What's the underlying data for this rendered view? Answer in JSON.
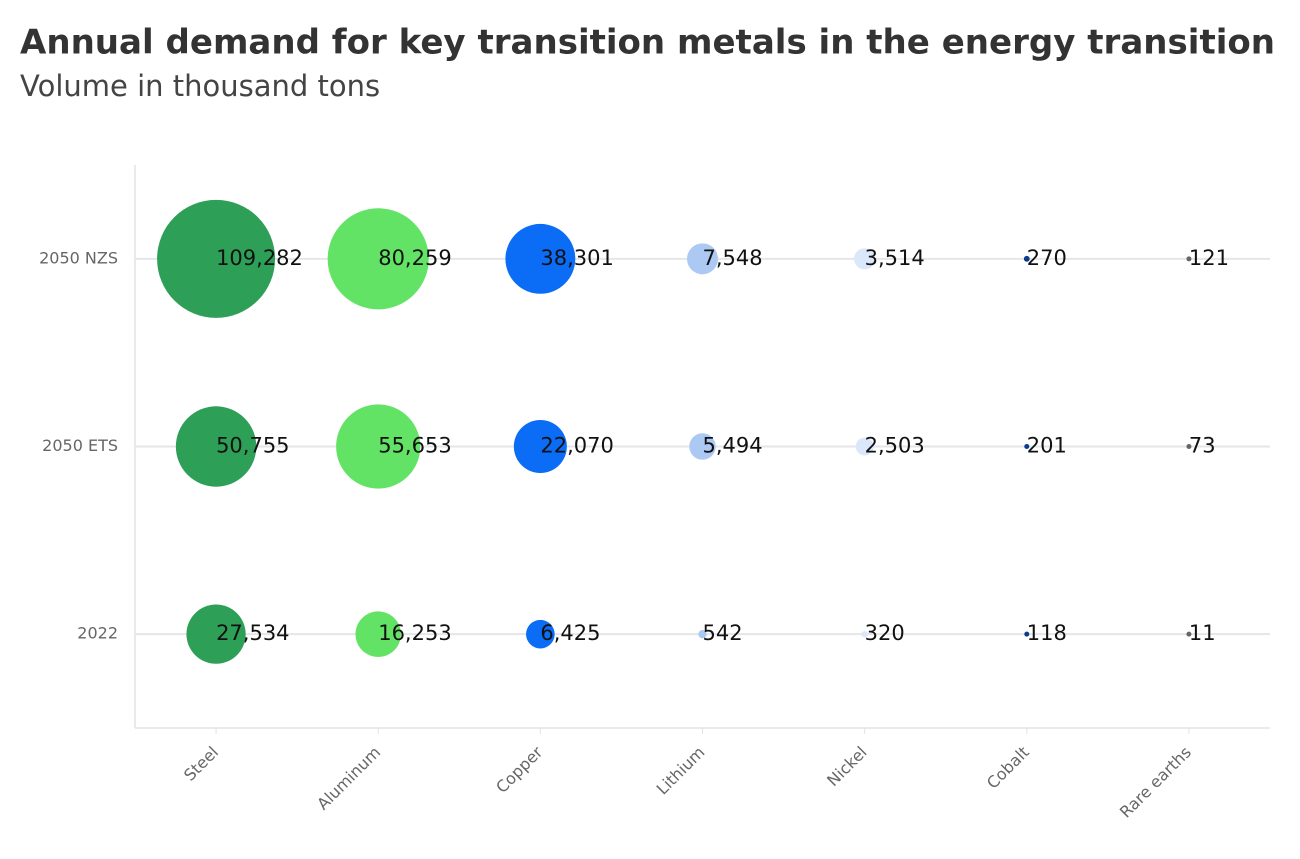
{
  "chart_data": {
    "type": "bubble",
    "title": "Annual demand for key transition metals in the energy transition",
    "subtitle": "Volume in thousand tons",
    "categories": [
      "Steel",
      "Aluminum",
      "Copper",
      "Lithium",
      "Nickel",
      "Cobalt",
      "Rare earths"
    ],
    "colors": [
      "#2e9f57",
      "#63e366",
      "#0b6cf6",
      "#abc9f3",
      "#dbe8fb",
      "#0b3b8c",
      "#666666"
    ],
    "rows": [
      "2050 NZS",
      "2050 ETS",
      "2022"
    ],
    "values": [
      [
        109282,
        80259,
        38301,
        7548,
        3514,
        270,
        121
      ],
      [
        50755,
        55653,
        22070,
        5494,
        2503,
        201,
        73
      ],
      [
        27534,
        16253,
        6425,
        542,
        320,
        118,
        11
      ]
    ],
    "value_labels": [
      [
        "109,282",
        "80,259",
        "38,301",
        "7,548",
        "3,514",
        "270",
        "121"
      ],
      [
        "50,755",
        "55,653",
        "22,070",
        "5,494",
        "2,503",
        "201",
        "73"
      ],
      [
        "27,534",
        "16,253",
        "6,425",
        "542",
        "320",
        "118",
        "11"
      ]
    ],
    "grid": true
  }
}
